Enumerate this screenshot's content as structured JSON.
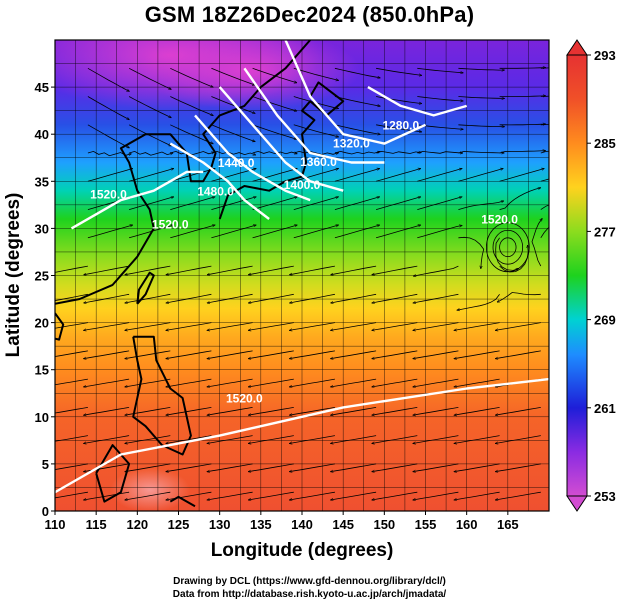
{
  "title": "GSM 18Z26Dec2024 (850.0hPa)",
  "x_axis": {
    "label": "Longitude (degrees)",
    "range": [
      110,
      170
    ],
    "ticks": [
      "110",
      "115",
      "120",
      "125",
      "130",
      "135",
      "140",
      "145",
      "150",
      "155",
      "160",
      "165"
    ]
  },
  "y_axis": {
    "label": "Latitude  (degrees)",
    "range": [
      0,
      50
    ],
    "ticks": [
      "0",
      "5",
      "10",
      "15",
      "20",
      "25",
      "30",
      "35",
      "40",
      "45"
    ]
  },
  "colorbar": {
    "range": [
      253,
      293
    ],
    "ticks": [
      "253",
      "261",
      "269",
      "277",
      "285",
      "293"
    ],
    "colors": [
      "#d24dd2",
      "#8a2be2",
      "#1e1ed8",
      "#1e8cff",
      "#00d2d2",
      "#1ed21e",
      "#8cdc1e",
      "#ffd21e",
      "#ff8c1e",
      "#f05028",
      "#e63232"
    ]
  },
  "contour_labels": [
    "1320.0",
    "1360.0",
    "1400.0",
    "1440.0",
    "1480.0",
    "1520.0",
    "1280.0",
    "1520.0",
    "1520.0",
    "1520.0"
  ],
  "footer": {
    "line1": "Drawing by DCL (https://www.gfd-dennou.org/library/dcl/)",
    "line2": "Data from http://database.rish.kyoto-u.ac.jp/arch/jmadata/"
  },
  "chart_data": {
    "type": "heatmap",
    "title": "GSM 18Z26Dec2024 (850.0hPa)",
    "xlabel": "Longitude (degrees)",
    "ylabel": "Latitude  (degrees)",
    "xlim": [
      110,
      170
    ],
    "ylim": [
      0,
      50
    ],
    "colorbar_range": [
      253,
      293
    ],
    "overlays": [
      "streamlines",
      "geopotential height contours (white)",
      "coastlines",
      "grid"
    ],
    "temperature_field_by_latitude": [
      {
        "lat": 48,
        "value": 257
      },
      {
        "lat": 44,
        "value": 262
      },
      {
        "lat": 40,
        "value": 266
      },
      {
        "lat": 35,
        "value": 271
      },
      {
        "lat": 30,
        "value": 276
      },
      {
        "lat": 25,
        "value": 281
      },
      {
        "lat": 20,
        "value": 285
      },
      {
        "lat": 15,
        "value": 288
      },
      {
        "lat": 10,
        "value": 290
      },
      {
        "lat": 5,
        "value": 291
      }
    ],
    "height_contours": [
      {
        "label": "1520.0",
        "points": [
          [
            110,
            2
          ],
          [
            118,
            6
          ],
          [
            130,
            8
          ],
          [
            145,
            11
          ],
          [
            160,
            13
          ],
          [
            170,
            14
          ]
        ]
      },
      {
        "label": "1520.0",
        "points": [
          [
            112,
            30
          ],
          [
            118,
            33
          ],
          [
            122,
            34
          ],
          [
            126,
            36
          ],
          [
            128,
            36
          ]
        ]
      },
      {
        "label": "1480.0",
        "points": [
          [
            124,
            39
          ],
          [
            128,
            37
          ],
          [
            131,
            35
          ],
          [
            133,
            33
          ],
          [
            136,
            31
          ]
        ]
      },
      {
        "label": "1440.0",
        "points": [
          [
            127,
            42
          ],
          [
            131,
            38
          ],
          [
            134,
            36
          ],
          [
            138,
            34
          ],
          [
            141,
            33
          ]
        ]
      },
      {
        "label": "1400.0",
        "points": [
          [
            130,
            45
          ],
          [
            134,
            41
          ],
          [
            138,
            37
          ],
          [
            141,
            35
          ],
          [
            145,
            34
          ]
        ]
      },
      {
        "label": "1360.0",
        "points": [
          [
            133,
            47
          ],
          [
            137,
            42
          ],
          [
            141,
            38
          ],
          [
            146,
            37
          ],
          [
            150,
            37
          ]
        ]
      },
      {
        "label": "1320.0",
        "points": [
          [
            138,
            50
          ],
          [
            141,
            44
          ],
          [
            145,
            40
          ],
          [
            150,
            39
          ],
          [
            155,
            41
          ]
        ]
      },
      {
        "label": "1280.0",
        "points": [
          [
            148,
            45
          ],
          [
            152,
            43
          ],
          [
            156,
            42
          ],
          [
            160,
            43
          ]
        ]
      }
    ],
    "circulation_center": {
      "lon": 165,
      "lat": 28
    }
  }
}
